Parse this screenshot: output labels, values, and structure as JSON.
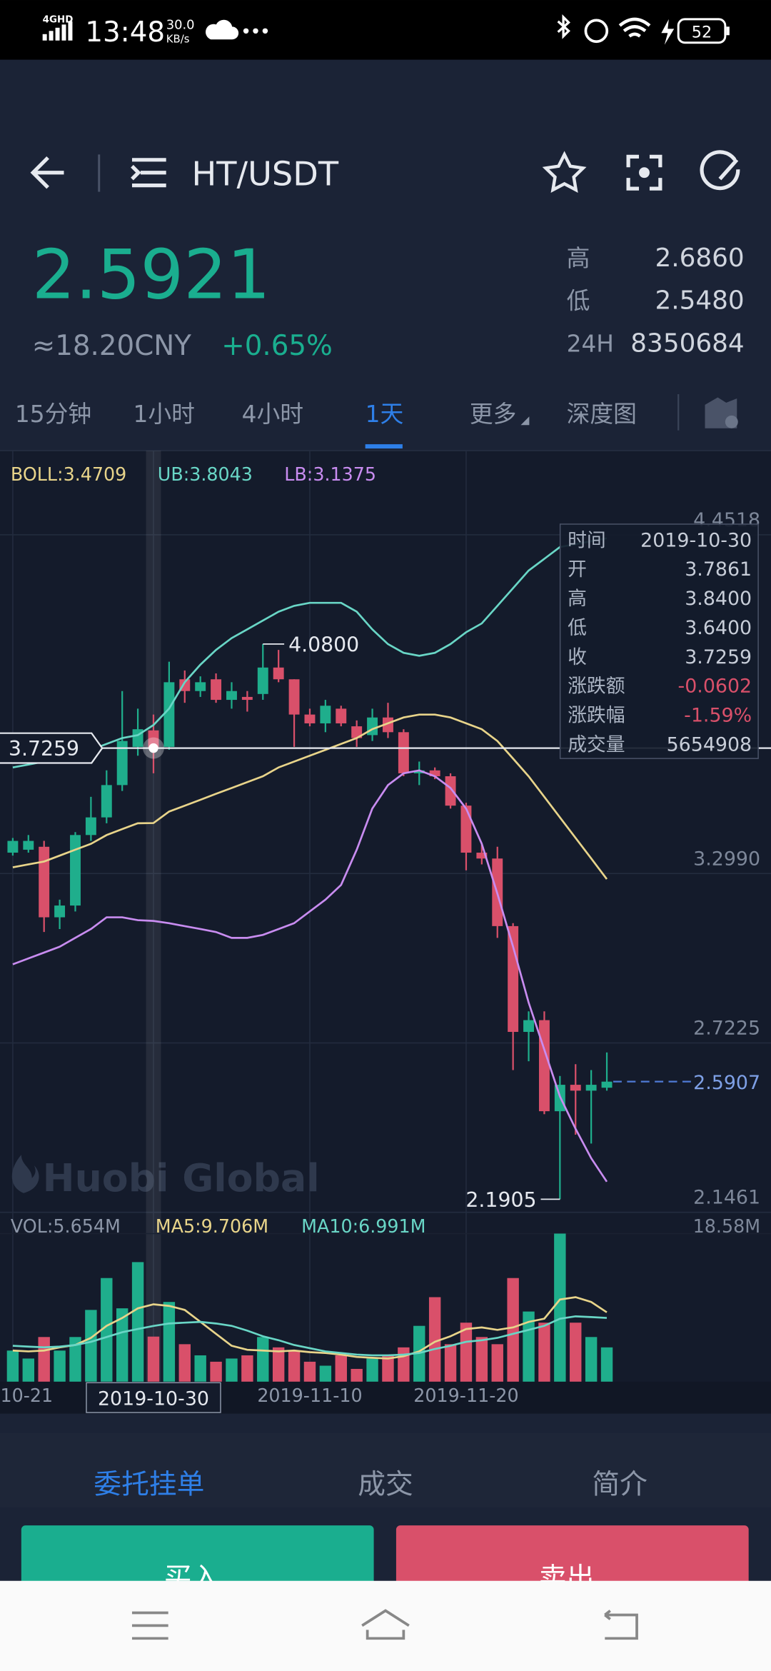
{
  "status_bar": {
    "network": "4GHD",
    "time": "13:48",
    "speed": "30.0",
    "speed_unit": "KB/s",
    "battery": "52"
  },
  "header": {
    "pair": "HT/USDT"
  },
  "ticker": {
    "price": "2.5921",
    "cny": "≈18.20CNY",
    "change": "+0.65%",
    "stats": [
      [
        "高",
        "2.6860"
      ],
      [
        "低",
        "2.5480"
      ],
      [
        "24H",
        "8350684"
      ]
    ]
  },
  "tabs": [
    "15分钟",
    "1小时",
    "4小时",
    "1天",
    "更多",
    "深度图"
  ],
  "chart_data": {
    "type": "candlestick",
    "categories": [
      "10-21",
      null,
      null,
      null,
      null,
      null,
      null,
      null,
      null,
      "2019-10-30",
      null,
      null,
      null,
      null,
      null,
      null,
      null,
      null,
      null,
      "2019-11-10",
      null,
      null,
      null,
      null,
      null,
      null,
      null,
      null,
      null,
      "2019-11-20",
      null,
      null,
      null,
      null,
      null,
      null,
      null,
      null,
      null
    ],
    "candles": {
      "up_color": "#1fae8c",
      "down_color": "#d9506a",
      "open": [
        3.37,
        3.38,
        3.39,
        3.15,
        3.19,
        3.43,
        3.49,
        3.6,
        3.73,
        3.7861,
        3.73,
        3.96,
        3.92,
        3.96,
        3.89,
        3.9,
        3.91,
        4.0,
        3.96,
        3.84,
        3.81,
        3.86,
        3.8,
        3.77,
        3.83,
        3.78,
        3.64,
        3.65,
        3.63,
        3.53,
        3.37,
        3.35,
        3.12,
        2.76,
        2.8,
        2.49,
        2.58,
        2.56,
        2.57
      ],
      "high": [
        3.42,
        3.43,
        3.41,
        3.21,
        3.44,
        3.56,
        3.65,
        3.92,
        3.86,
        3.84,
        4.02,
        3.99,
        3.97,
        3.98,
        3.95,
        3.92,
        4.08,
        4.06,
        3.96,
        3.86,
        3.89,
        3.87,
        3.82,
        3.86,
        3.88,
        3.79,
        3.68,
        3.66,
        3.64,
        3.54,
        3.4,
        3.39,
        3.13,
        2.83,
        2.83,
        2.61,
        2.65,
        2.63,
        2.69
      ],
      "low": [
        3.36,
        3.37,
        3.1,
        3.11,
        3.17,
        3.41,
        3.47,
        3.58,
        3.7,
        3.64,
        3.72,
        3.88,
        3.9,
        3.88,
        3.86,
        3.85,
        3.89,
        3.95,
        3.73,
        3.8,
        3.78,
        3.8,
        3.73,
        3.75,
        3.76,
        3.63,
        3.6,
        3.62,
        3.52,
        3.31,
        3.33,
        3.08,
        2.63,
        2.66,
        2.48,
        2.1905,
        2.41,
        2.38,
        2.56
      ],
      "close": [
        3.41,
        3.41,
        3.15,
        3.19,
        3.43,
        3.49,
        3.6,
        3.75,
        3.79,
        3.7259,
        3.95,
        3.92,
        3.95,
        3.89,
        3.92,
        3.89,
        4.0,
        3.96,
        3.84,
        3.81,
        3.87,
        3.81,
        3.76,
        3.83,
        3.78,
        3.64,
        3.65,
        3.63,
        3.53,
        3.37,
        3.35,
        3.12,
        2.76,
        2.8,
        2.49,
        2.58,
        2.56,
        2.58,
        2.5907
      ]
    },
    "overlays": [
      {
        "name": "BOLL:3.4709",
        "color": "#e8d48a",
        "values": [
          3.32,
          3.33,
          3.34,
          3.36,
          3.38,
          3.4,
          3.43,
          3.45,
          3.47,
          3.4709,
          3.51,
          3.53,
          3.55,
          3.57,
          3.59,
          3.61,
          3.63,
          3.66,
          3.68,
          3.7,
          3.72,
          3.74,
          3.76,
          3.79,
          3.81,
          3.83,
          3.84,
          3.84,
          3.83,
          3.81,
          3.79,
          3.75,
          3.69,
          3.63,
          3.56,
          3.49,
          3.42,
          3.35,
          3.28
        ]
      },
      {
        "name": "UB:3.8043",
        "color": "#69d6c6",
        "values": [
          3.66,
          3.67,
          3.68,
          3.69,
          3.7,
          3.72,
          3.74,
          3.76,
          3.77,
          3.8043,
          3.86,
          3.95,
          4.01,
          4.06,
          4.1,
          4.13,
          4.16,
          4.19,
          4.21,
          4.22,
          4.22,
          4.22,
          4.19,
          4.13,
          4.08,
          4.05,
          4.04,
          4.05,
          4.08,
          4.12,
          4.15,
          4.21,
          4.27,
          4.33,
          4.37,
          4.41,
          4.42,
          4.43,
          4.44
        ]
      },
      {
        "name": "LB:3.1375",
        "color": "#c88cf0",
        "values": [
          2.99,
          3.01,
          3.03,
          3.05,
          3.08,
          3.11,
          3.15,
          3.15,
          3.14,
          3.1375,
          3.13,
          3.12,
          3.11,
          3.1,
          3.08,
          3.08,
          3.09,
          3.11,
          3.13,
          3.17,
          3.21,
          3.26,
          3.38,
          3.52,
          3.6,
          3.64,
          3.65,
          3.63,
          3.59,
          3.52,
          3.4,
          3.23,
          3.05,
          2.86,
          2.7,
          2.54,
          2.43,
          2.33,
          2.25
        ]
      }
    ],
    "ylim": [
      2.1461,
      4.4518
    ],
    "yticks": [
      4.4518,
      {
        "value": 3.299,
        "label": "3.2990"
      },
      2.7225,
      2.1461
    ],
    "grid": true,
    "crosshair": {
      "value": 3.7259,
      "label": "3.7259"
    },
    "last_price": {
      "value": 2.5907,
      "label": "2.5907"
    },
    "max_label": {
      "value": 4.08,
      "label": "4.0800"
    },
    "min_label": {
      "value": 2.1905,
      "label": "2.1905"
    },
    "watermark": "Huobi Global",
    "tooltip": [
      [
        "时间",
        "2019-10-30"
      ],
      [
        "开",
        "3.7861"
      ],
      [
        "高",
        "3.8400"
      ],
      [
        "低",
        "3.6400"
      ],
      [
        "收",
        "3.7259"
      ],
      [
        "涨跌额",
        "-0.0602"
      ],
      [
        "涨跌幅",
        "-1.59%"
      ],
      [
        "成交量",
        "5654908"
      ]
    ],
    "volume": {
      "name": "VOL:5.654M",
      "color": "#8c96a8",
      "values": [
        3.9,
        2.9,
        5.6,
        3.9,
        5.6,
        9.0,
        13.0,
        9.2,
        15.0,
        5.654,
        10.0,
        4.7,
        3.3,
        2.5,
        2.9,
        3.3,
        5.6,
        4.3,
        3.9,
        2.5,
        2.0,
        3.3,
        1.6,
        2.9,
        3.3,
        4.3,
        7.0,
        10.6,
        4.7,
        7.4,
        5.6,
        4.7,
        13.0,
        8.8,
        7.4,
        18.58,
        7.4,
        5.6,
        4.3
      ],
      "ylim": [
        0,
        18.58
      ],
      "yticks": [
        {
          "value": 18.58,
          "label": "18.58M"
        }
      ],
      "overlays": [
        {
          "name": "MA5:9.706M",
          "color": "#e8d48a",
          "values": [
            3.9,
            3.8,
            3.9,
            4.3,
            4.6,
            5.5,
            7.0,
            8.0,
            9.2,
            9.706,
            9.5,
            9.0,
            7.5,
            6.0,
            4.5,
            4.0,
            3.9,
            3.8,
            3.9,
            3.7,
            3.6,
            3.4,
            3.1,
            3.0,
            2.9,
            3.2,
            3.8,
            5.0,
            5.7,
            6.6,
            6.8,
            6.5,
            6.8,
            7.5,
            7.9,
            10.3,
            10.6,
            10.0,
            8.7
          ]
        },
        {
          "name": "MA10:6.991M",
          "color": "#69d6c6",
          "values": [
            4.5,
            4.4,
            4.3,
            4.4,
            4.6,
            5.0,
            5.6,
            6.2,
            6.6,
            6.991,
            7.3,
            7.4,
            7.5,
            7.3,
            7.0,
            6.4,
            5.7,
            5.2,
            4.6,
            4.2,
            3.8,
            3.6,
            3.4,
            3.3,
            3.3,
            3.4,
            3.6,
            4.1,
            4.5,
            5.0,
            5.2,
            5.5,
            6.0,
            6.5,
            7.0,
            7.9,
            8.2,
            8.1,
            8.0
          ]
        }
      ]
    }
  },
  "bottom_tabs": [
    "委托挂单",
    "成交",
    "简介"
  ],
  "buttons": [
    "买入",
    "卖出"
  ]
}
